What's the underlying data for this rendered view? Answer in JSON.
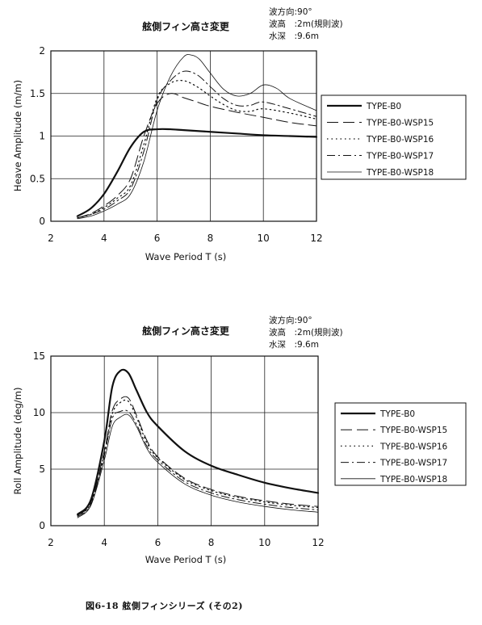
{
  "chart_data": [
    {
      "type": "line",
      "title": "舷側フィン高さ変更",
      "conditions": [
        "波方向:90°",
        "波高　:2m(規則波)",
        "水深　:9.6m"
      ],
      "xlabel": "Wave Period  T (s)",
      "ylabel": "Heave Amplitude (m/m)",
      "xlim": [
        2,
        12
      ],
      "ylim": [
        0,
        2
      ],
      "xticks": [
        "2",
        "4",
        "6",
        "8",
        "10",
        "12"
      ],
      "yticks": [
        "0",
        "0.5",
        "1",
        "1.5",
        "2"
      ],
      "grid": true,
      "legend": "right",
      "series": [
        {
          "name": "TYPE-B0",
          "dash": "solid",
          "width": 2.2,
          "x": [
            3,
            3.5,
            4,
            4.5,
            5,
            5.5,
            6,
            6.5,
            7,
            8,
            9,
            10,
            11,
            12
          ],
          "y": [
            0.06,
            0.15,
            0.32,
            0.58,
            0.87,
            1.05,
            1.08,
            1.08,
            1.07,
            1.05,
            1.03,
            1.01,
            1.0,
            0.99
          ]
        },
        {
          "name": "TYPE-B0-WSP15",
          "dash": "long",
          "width": 1,
          "x": [
            3,
            3.5,
            4,
            4.5,
            5,
            5.5,
            6,
            6.5,
            7,
            7.5,
            8,
            9,
            10,
            11,
            12
          ],
          "y": [
            0.04,
            0.09,
            0.18,
            0.3,
            0.5,
            1.0,
            1.38,
            1.5,
            1.45,
            1.4,
            1.35,
            1.28,
            1.22,
            1.16,
            1.12
          ]
        },
        {
          "name": "TYPE-B0-WSP16",
          "dash": "dot",
          "width": 1.2,
          "x": [
            3,
            3.5,
            4,
            4.5,
            5,
            5.5,
            6,
            6.5,
            7,
            7.5,
            8,
            8.5,
            9,
            9.5,
            10,
            11,
            12
          ],
          "y": [
            0.04,
            0.08,
            0.16,
            0.27,
            0.42,
            0.9,
            1.45,
            1.62,
            1.65,
            1.58,
            1.47,
            1.37,
            1.3,
            1.29,
            1.32,
            1.27,
            1.2
          ]
        },
        {
          "name": "TYPE-B0-WSP17",
          "dash": "dashdot",
          "width": 1,
          "x": [
            3,
            3.5,
            4,
            4.5,
            5,
            5.5,
            6,
            6.5,
            7,
            7.5,
            8,
            8.5,
            9,
            9.5,
            10,
            11,
            12
          ],
          "y": [
            0.04,
            0.08,
            0.14,
            0.24,
            0.38,
            0.82,
            1.42,
            1.65,
            1.76,
            1.72,
            1.58,
            1.44,
            1.36,
            1.36,
            1.4,
            1.32,
            1.23
          ]
        },
        {
          "name": "TYPE-B0-WSP18",
          "dash": "solid",
          "width": 0.8,
          "x": [
            3,
            3.5,
            4,
            4.5,
            5,
            5.5,
            6,
            6.5,
            7,
            7.3,
            7.6,
            8,
            8.5,
            9,
            9.5,
            10,
            10.5,
            11,
            12
          ],
          "y": [
            0.03,
            0.06,
            0.12,
            0.2,
            0.32,
            0.7,
            1.3,
            1.7,
            1.93,
            1.95,
            1.9,
            1.74,
            1.55,
            1.47,
            1.5,
            1.6,
            1.56,
            1.44,
            1.3
          ]
        }
      ]
    },
    {
      "type": "line",
      "title": "舷側フィン高さ変更",
      "conditions": [
        "波方向:90°",
        "波高　:2m(規則波)",
        "水深　:9.6m"
      ],
      "xlabel": "Wave Period  T (s)",
      "ylabel": "Roll Amplitude (deg/m)",
      "xlim": [
        2,
        12
      ],
      "ylim": [
        0,
        15
      ],
      "xticks": [
        "2",
        "4",
        "6",
        "8",
        "10",
        "12"
      ],
      "yticks": [
        "0",
        "5",
        "10",
        "15"
      ],
      "grid": true,
      "legend": "right",
      "series": [
        {
          "name": "TYPE-B0",
          "dash": "solid",
          "width": 2.2,
          "x": [
            3,
            3.5,
            4,
            4.3,
            4.6,
            4.9,
            5.2,
            5.6,
            6,
            7,
            8,
            9,
            10,
            11,
            12
          ],
          "y": [
            1.0,
            2.3,
            7.5,
            12.3,
            13.7,
            13.5,
            12.0,
            10.0,
            8.8,
            6.6,
            5.3,
            4.5,
            3.8,
            3.3,
            2.9
          ]
        },
        {
          "name": "TYPE-B0-WSP15",
          "dash": "long",
          "width": 1,
          "x": [
            3,
            3.5,
            4,
            4.3,
            4.6,
            4.9,
            5.2,
            5.6,
            6,
            7,
            8,
            9,
            10,
            11,
            12
          ],
          "y": [
            0.9,
            2.1,
            6.6,
            10.2,
            11.2,
            11.3,
            9.8,
            7.5,
            6.1,
            4.2,
            3.2,
            2.6,
            2.2,
            1.9,
            1.7
          ]
        },
        {
          "name": "TYPE-B0-WSP16",
          "dash": "dot",
          "width": 1.2,
          "x": [
            3,
            3.5,
            4,
            4.3,
            4.6,
            4.9,
            5.2,
            5.6,
            6,
            7,
            8,
            9,
            10,
            11,
            12
          ],
          "y": [
            0.9,
            2.0,
            6.4,
            9.9,
            10.9,
            11.0,
            9.6,
            7.3,
            6.0,
            4.1,
            3.1,
            2.5,
            2.1,
            1.8,
            1.6
          ]
        },
        {
          "name": "TYPE-B0-WSP17",
          "dash": "dashdot",
          "width": 1,
          "x": [
            3,
            3.5,
            4,
            4.3,
            4.6,
            4.9,
            5.2,
            5.6,
            6,
            7,
            8,
            9,
            10,
            11,
            12
          ],
          "y": [
            0.8,
            1.9,
            6.2,
            9.5,
            10.1,
            10.1,
            9.0,
            7.0,
            5.8,
            3.9,
            2.9,
            2.3,
            1.9,
            1.6,
            1.4
          ]
        },
        {
          "name": "TYPE-B0-WSP18",
          "dash": "solid",
          "width": 0.8,
          "x": [
            3,
            3.5,
            4,
            4.3,
            4.6,
            4.9,
            5.2,
            5.6,
            6,
            7,
            8,
            9,
            10,
            11,
            12
          ],
          "y": [
            0.7,
            1.8,
            5.8,
            8.8,
            9.6,
            9.8,
            8.8,
            6.8,
            5.6,
            3.7,
            2.7,
            2.1,
            1.7,
            1.4,
            1.2
          ]
        }
      ]
    }
  ],
  "caption": "図6-18 舷側フィンシリーズ (その2)"
}
